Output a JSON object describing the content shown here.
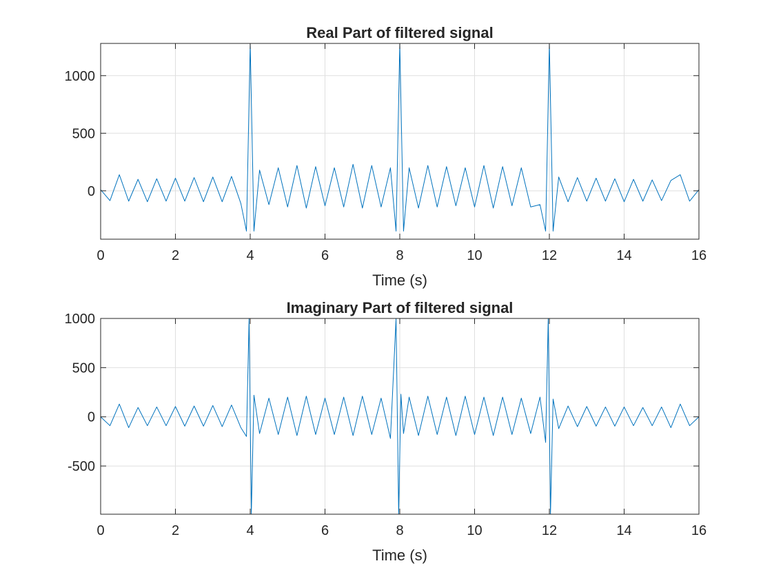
{
  "figure": {
    "background": "#ffffff",
    "line_color": "#0072bd",
    "axis_color": "#262626",
    "grid_color": "#dfdfdf"
  },
  "chart_data": [
    {
      "type": "line",
      "title": "Real Part of filtered signal",
      "xlabel": "Time (s)",
      "ylabel": "",
      "xlim": [
        0,
        16
      ],
      "ylim": [
        -420,
        1280
      ],
      "xticks": [
        0,
        2,
        4,
        6,
        8,
        10,
        12,
        14,
        16
      ],
      "xtick_labels": [
        "0",
        "2",
        "4",
        "6",
        "8",
        "10",
        "12",
        "14",
        "16"
      ],
      "yticks": [
        0,
        500,
        1000
      ],
      "ytick_labels": [
        "0",
        "500",
        "1000"
      ],
      "grid": true,
      "series": [
        {
          "x": [
            0,
            0.25,
            0.5,
            0.75,
            1,
            1.25,
            1.5,
            1.75,
            2,
            2.25,
            2.5,
            2.75,
            3,
            3.25,
            3.5,
            3.75,
            3.9,
            4,
            4.1,
            4.25,
            4.5,
            4.75,
            5,
            5.25,
            5.5,
            5.75,
            6,
            6.25,
            6.5,
            6.75,
            7,
            7.25,
            7.5,
            7.75,
            7.9,
            8,
            8.1,
            8.25,
            8.5,
            8.75,
            9,
            9.25,
            9.5,
            9.75,
            10,
            10.25,
            10.5,
            10.75,
            11,
            11.25,
            11.5,
            11.75,
            11.9,
            12,
            12.1,
            12.25,
            12.5,
            12.75,
            13,
            13.25,
            13.5,
            13.75,
            14,
            14.25,
            14.5,
            14.75,
            15,
            15.25,
            15.5,
            15.75,
            16
          ],
          "y": [
            10,
            -85,
            140,
            -90,
            100,
            -95,
            105,
            -90,
            110,
            -90,
            115,
            -95,
            120,
            -95,
            125,
            -110,
            -350,
            1280,
            -350,
            180,
            -120,
            200,
            -140,
            220,
            -150,
            210,
            -130,
            200,
            -140,
            230,
            -150,
            220,
            -140,
            200,
            -350,
            1280,
            -350,
            200,
            -150,
            220,
            -140,
            210,
            -130,
            200,
            -140,
            220,
            -150,
            210,
            -130,
            200,
            -140,
            -120,
            -350,
            1280,
            -350,
            120,
            -95,
            115,
            -90,
            110,
            -90,
            105,
            -95,
            100,
            -90,
            95,
            -85,
            90,
            140,
            -90,
            10
          ]
        }
      ]
    },
    {
      "type": "line",
      "title": "Imaginary Part of filtered signal",
      "xlabel": "Time (s)",
      "ylabel": "",
      "xlim": [
        0,
        16
      ],
      "ylim": [
        -990,
        1000
      ],
      "xticks": [
        0,
        2,
        4,
        6,
        8,
        10,
        12,
        14,
        16
      ],
      "xtick_labels": [
        "0",
        "2",
        "4",
        "6",
        "8",
        "10",
        "12",
        "14",
        "16"
      ],
      "yticks": [
        -500,
        0,
        500,
        1000
      ],
      "ytick_labels": [
        "-500",
        "0",
        "500",
        "1000"
      ],
      "grid": true,
      "series": [
        {
          "x": [
            0,
            0.25,
            0.5,
            0.75,
            1,
            1.25,
            1.5,
            1.75,
            2,
            2.25,
            2.5,
            2.75,
            3,
            3.25,
            3.5,
            3.75,
            3.9,
            3.97,
            4.03,
            4.1,
            4.25,
            4.5,
            4.75,
            5,
            5.25,
            5.5,
            5.75,
            6,
            6.25,
            6.5,
            6.75,
            7,
            7.25,
            7.5,
            7.75,
            7.9,
            7.97,
            8.03,
            8.1,
            8.25,
            8.5,
            8.75,
            9,
            9.25,
            9.5,
            9.75,
            10,
            10.25,
            10.5,
            10.75,
            11,
            11.25,
            11.5,
            11.75,
            11.9,
            11.97,
            12.03,
            12.1,
            12.25,
            12.5,
            12.75,
            13,
            13.25,
            13.5,
            13.75,
            14,
            14.25,
            14.5,
            14.75,
            15,
            15.25,
            15.5,
            15.75,
            16
          ],
          "y": [
            0,
            -90,
            130,
            -110,
            95,
            -90,
            100,
            -90,
            105,
            -95,
            110,
            -95,
            115,
            -100,
            120,
            -110,
            -200,
            1000,
            -990,
            220,
            -170,
            190,
            -180,
            200,
            -190,
            210,
            -180,
            190,
            -180,
            200,
            -190,
            210,
            -180,
            190,
            -220,
            1000,
            -990,
            230,
            -170,
            200,
            -190,
            210,
            -180,
            200,
            -190,
            210,
            -180,
            200,
            -190,
            200,
            -180,
            190,
            -170,
            200,
            -260,
            1000,
            -990,
            180,
            -120,
            110,
            -100,
            105,
            -95,
            100,
            -95,
            100,
            -90,
            95,
            -90,
            100,
            -110,
            130,
            -90,
            0
          ]
        }
      ]
    }
  ]
}
